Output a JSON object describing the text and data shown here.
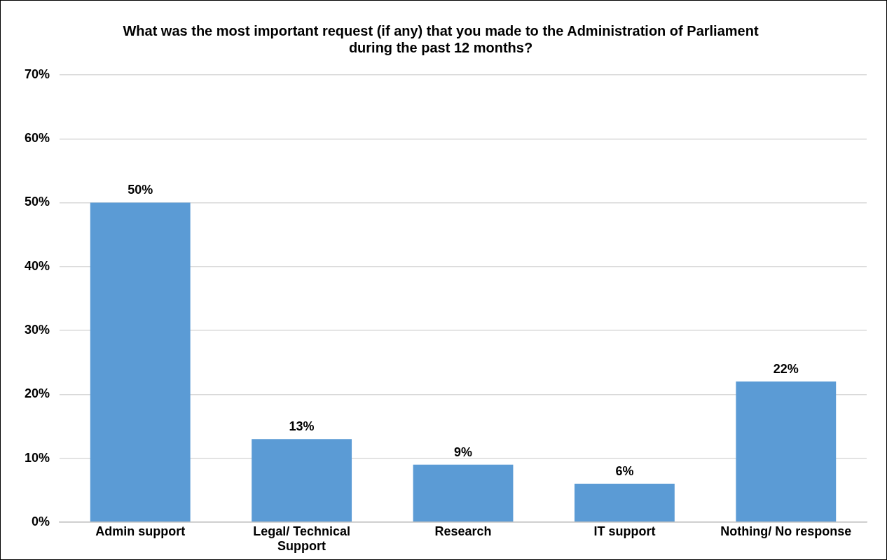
{
  "chart_data": {
    "type": "bar",
    "title": "What was the most important request (if any) that you made to the Administration of Parliament during the past 12 months?",
    "categories": [
      "Admin support",
      "Legal/ Technical Support",
      "Research",
      "IT support",
      "Nothing/ No response"
    ],
    "values": [
      50,
      13,
      9,
      6,
      22
    ],
    "color": "#5b9bd5",
    "value_labels": [
      "50%",
      "13%",
      "9%",
      "6%",
      "22%"
    ],
    "ylim": [
      0,
      70
    ],
    "yticks": [
      {
        "value": 0,
        "label": "0%"
      },
      {
        "value": 10,
        "label": "10%"
      },
      {
        "value": 20,
        "label": "20%"
      },
      {
        "value": 30,
        "label": "30%"
      },
      {
        "value": 40,
        "label": "40%"
      },
      {
        "value": 50,
        "label": "50%"
      },
      {
        "value": 60,
        "label": "60%"
      },
      {
        "value": 70,
        "label": "70%"
      }
    ],
    "grid": "y",
    "legend": false
  }
}
